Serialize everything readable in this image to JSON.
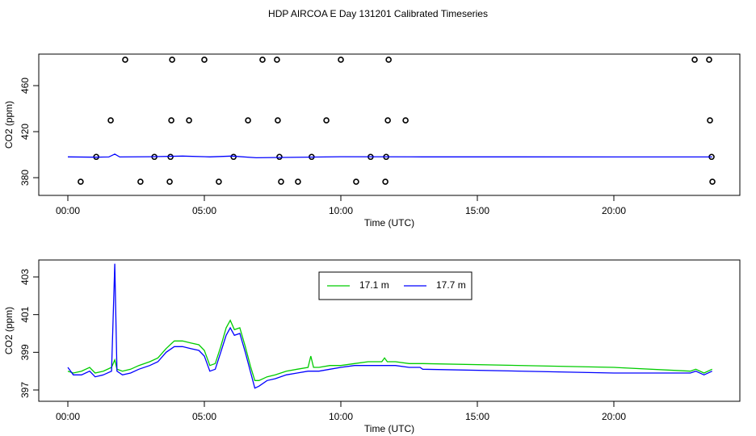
{
  "title": "HDP AIRCOA E  Day 131201  Calibrated Timeseries",
  "chart_data": [
    {
      "type": "scatter",
      "xlabel": "Time (UTC)",
      "ylabel": "CO2 (ppm)",
      "xlim": [
        -1.065,
        24.615
      ],
      "ylim": [
        364.6,
        487.4
      ],
      "xticks": [
        {
          "value": 0,
          "label": "00:00"
        },
        {
          "value": 5,
          "label": "05:00"
        },
        {
          "value": 10,
          "label": "10:00"
        },
        {
          "value": 15,
          "label": "15:00"
        },
        {
          "value": 20,
          "label": "20:00"
        }
      ],
      "yticks": [
        380,
        420,
        460
      ],
      "series": [
        {
          "type": "scatter",
          "color": "#000000",
          "x": [
            2.1,
            3.82,
            5.0,
            7.13,
            7.66,
            10.0,
            11.75,
            22.96,
            23.49,
            1.57,
            3.79,
            4.44,
            6.6,
            7.69,
            9.47,
            11.72,
            12.37,
            23.52,
            1.04,
            3.17,
            3.76,
            6.07,
            7.75,
            8.93,
            11.09,
            11.66,
            23.58,
            0.47,
            2.66,
            3.73,
            5.53,
            7.81,
            8.43,
            10.56,
            11.63,
            23.61
          ],
          "values": [
            482.5,
            482.5,
            482.5,
            482.5,
            482.5,
            482.5,
            482.5,
            482.5,
            482.5,
            429.8,
            429.8,
            429.8,
            429.8,
            429.8,
            429.8,
            429.8,
            429.8,
            429.8,
            398.1,
            398.1,
            398.1,
            398.1,
            398.1,
            398.1,
            398.1,
            398.1,
            398.1,
            376.5,
            376.5,
            376.5,
            376.5,
            376.5,
            376.5,
            376.5,
            376.5,
            376.5
          ]
        },
        {
          "type": "line",
          "color": "#0000ff",
          "x": [
            0,
            1.0,
            1.5,
            1.72,
            1.9,
            3.0,
            4.2,
            5.2,
            6.0,
            6.9,
            10.0,
            13.0,
            23.6
          ],
          "values": [
            398.1,
            397.8,
            398.0,
            400.5,
            398.0,
            398.2,
            398.8,
            398.1,
            398.8,
            397.3,
            398.2,
            398.1,
            398.0
          ]
        }
      ]
    },
    {
      "type": "line",
      "xlabel": "Time (UTC)",
      "ylabel": "CO2 (ppm)",
      "xlim": [
        -1.065,
        24.615
      ],
      "ylim": [
        396.4,
        403.9
      ],
      "legend": "top",
      "xticks": [
        {
          "value": 0,
          "label": "00:00"
        },
        {
          "value": 5,
          "label": "05:00"
        },
        {
          "value": 10,
          "label": "10:00"
        },
        {
          "value": 15,
          "label": "15:00"
        },
        {
          "value": 20,
          "label": "20:00"
        }
      ],
      "yticks": [
        397,
        399,
        401,
        403
      ],
      "series": [
        {
          "type": "line",
          "name": "17.1 m",
          "color": "#00cc00",
          "x": [
            0,
            0.2,
            0.5,
            0.8,
            1.0,
            1.3,
            1.6,
            1.72,
            1.8,
            2.0,
            2.3,
            2.6,
            3.0,
            3.3,
            3.6,
            3.9,
            4.2,
            4.5,
            4.8,
            5.0,
            5.2,
            5.4,
            5.6,
            5.8,
            5.95,
            6.1,
            6.3,
            6.5,
            6.7,
            6.85,
            7.0,
            7.3,
            7.6,
            8.0,
            8.4,
            8.8,
            8.9,
            9.0,
            9.2,
            9.6,
            10.0,
            10.5,
            11.0,
            11.5,
            11.6,
            11.7,
            12.0,
            12.5,
            12.9,
            13.0,
            20.0,
            22.8,
            23.0,
            23.3,
            23.6
          ],
          "values": [
            398.0,
            397.9,
            398.0,
            398.2,
            397.9,
            398.0,
            398.2,
            398.6,
            398.1,
            398.0,
            398.1,
            398.3,
            398.5,
            398.7,
            399.2,
            399.6,
            399.6,
            399.5,
            399.4,
            399.1,
            398.3,
            398.4,
            399.3,
            400.3,
            400.7,
            400.2,
            400.3,
            399.3,
            398.2,
            397.5,
            397.5,
            397.7,
            397.8,
            398.0,
            398.1,
            398.2,
            398.8,
            398.2,
            398.2,
            398.3,
            398.3,
            398.4,
            398.5,
            398.5,
            398.7,
            398.5,
            398.5,
            398.4,
            398.4,
            398.4,
            398.2,
            398.0,
            398.1,
            397.9,
            398.1
          ]
        },
        {
          "type": "line",
          "name": "17.7 m",
          "color": "#0000ff",
          "x": [
            0,
            0.2,
            0.5,
            0.8,
            1.0,
            1.3,
            1.6,
            1.72,
            1.8,
            2.0,
            2.3,
            2.6,
            3.0,
            3.3,
            3.6,
            3.9,
            4.2,
            4.5,
            4.8,
            5.0,
            5.2,
            5.4,
            5.6,
            5.8,
            5.95,
            6.1,
            6.3,
            6.5,
            6.7,
            6.85,
            7.0,
            7.3,
            7.6,
            8.0,
            8.4,
            8.8,
            9.2,
            9.6,
            10.0,
            10.5,
            11.0,
            11.5,
            12.0,
            12.5,
            12.9,
            13.0,
            20.0,
            22.8,
            23.0,
            23.3,
            23.6
          ],
          "values": [
            398.2,
            397.8,
            397.8,
            398.0,
            397.7,
            397.8,
            398.0,
            403.7,
            398.0,
            397.8,
            397.9,
            398.1,
            398.3,
            398.5,
            399.0,
            399.3,
            399.3,
            399.2,
            399.1,
            398.8,
            398.0,
            398.1,
            399.0,
            399.9,
            400.3,
            399.9,
            400.0,
            399.0,
            397.9,
            397.1,
            397.2,
            397.5,
            397.6,
            397.8,
            397.9,
            398.0,
            398.0,
            398.1,
            398.2,
            398.3,
            398.3,
            398.3,
            398.3,
            398.2,
            398.2,
            398.1,
            397.9,
            397.9,
            398.0,
            397.8,
            398.0
          ]
        }
      ]
    }
  ]
}
